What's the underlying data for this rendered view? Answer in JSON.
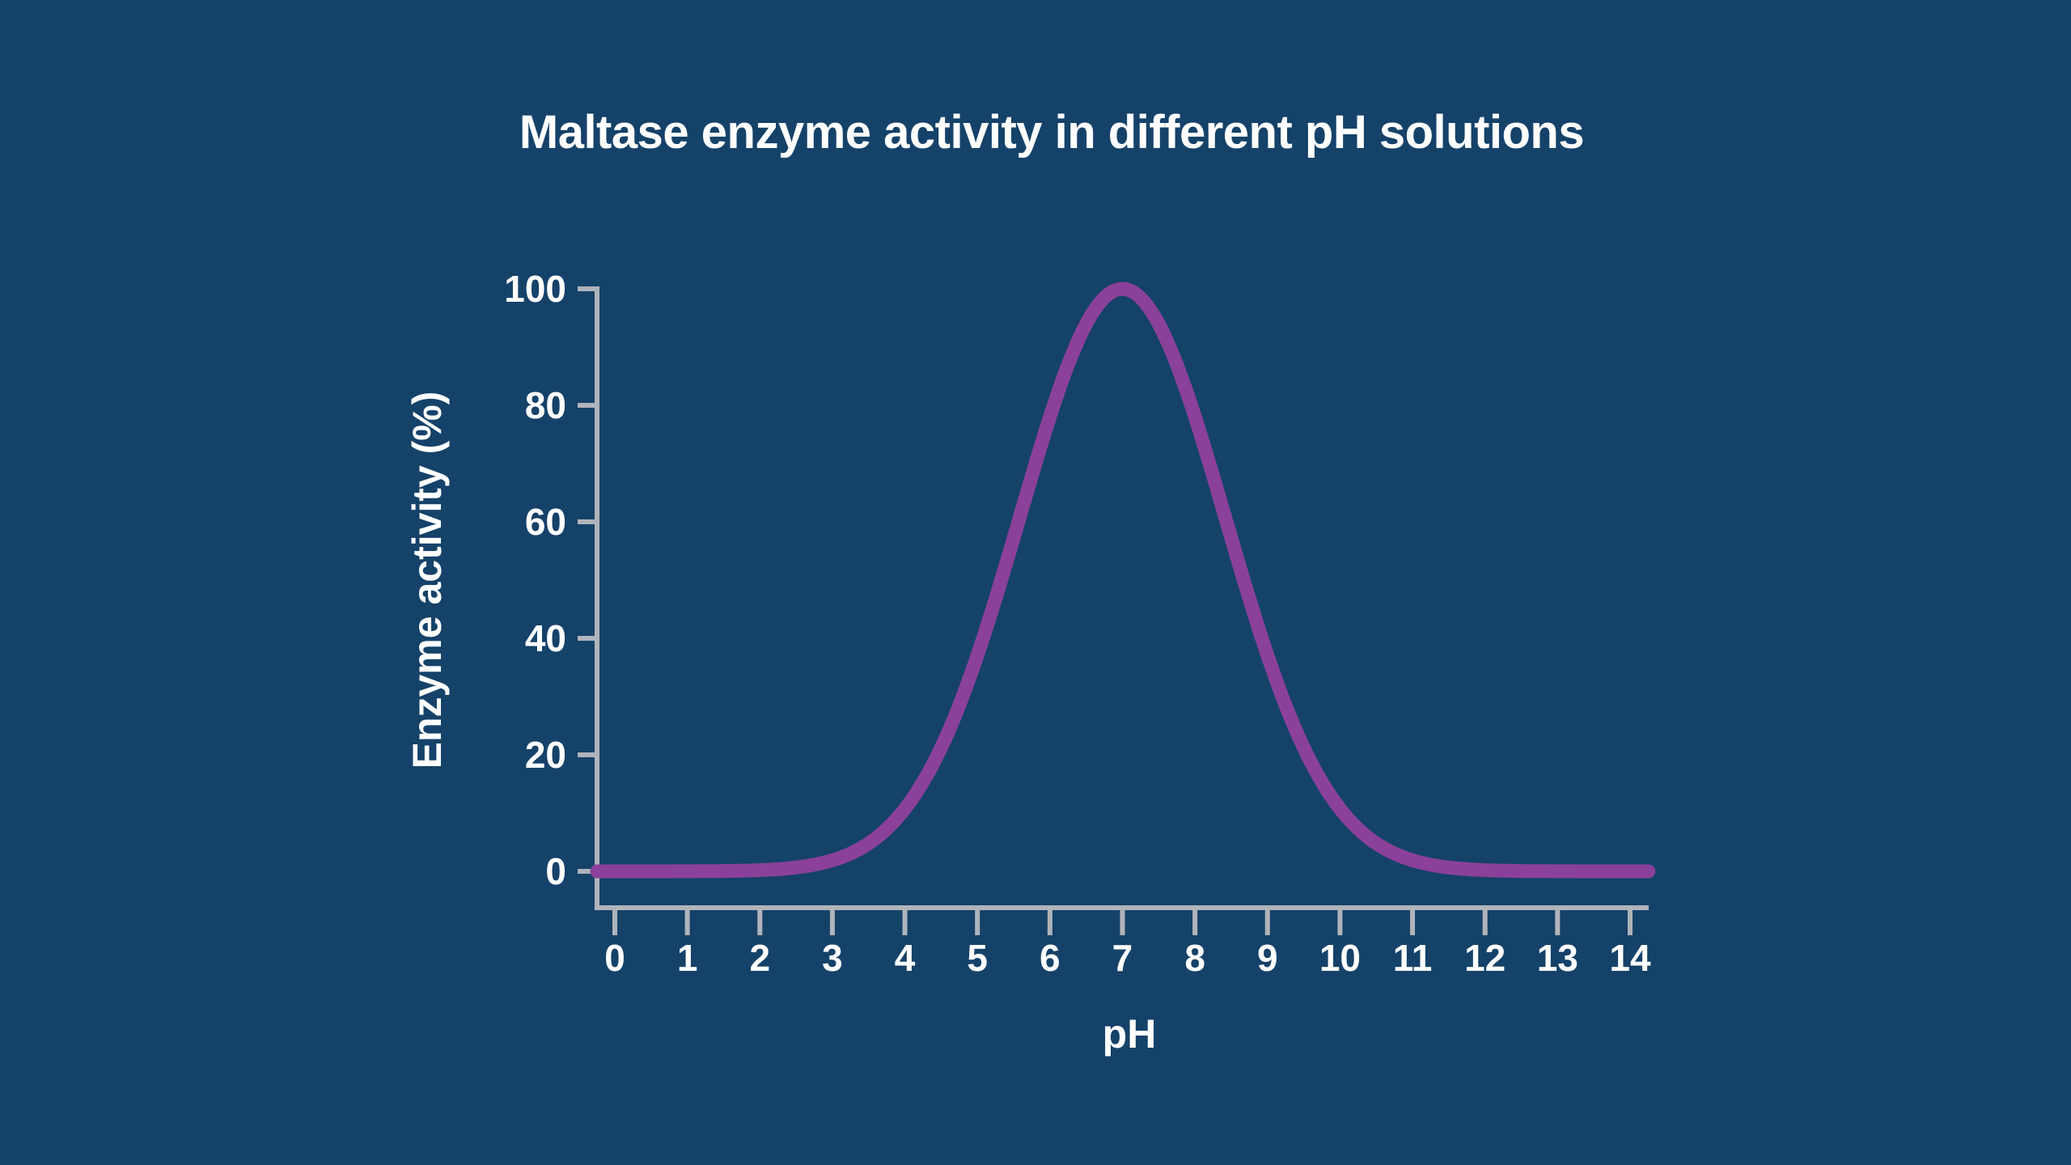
{
  "title": "Maltase enzyme activity in different pH solutions",
  "colors": {
    "background": "#154269",
    "text": "#ffffff",
    "axis": "#b0b4ba",
    "curve": "#8b4199"
  },
  "chart_data": {
    "type": "line",
    "title": "Maltase enzyme activity in different pH solutions",
    "xlabel": "pH",
    "ylabel": "Enzyme activity (%)",
    "xlim": [
      0,
      14
    ],
    "ylim": [
      0,
      100
    ],
    "x_ticks": [
      0,
      1,
      2,
      3,
      4,
      5,
      6,
      7,
      8,
      9,
      10,
      11,
      12,
      13,
      14
    ],
    "y_ticks": [
      0,
      20,
      40,
      60,
      80,
      100
    ],
    "grid": false,
    "legend": false,
    "series": [
      {
        "name": "Maltase enzyme activity",
        "shape": "bell",
        "peak_ph": 7,
        "peak_activity": 100,
        "sigma": 1.42,
        "x": [
          0,
          1,
          2,
          3,
          4,
          5,
          6,
          7,
          8,
          9,
          10,
          11,
          12,
          13,
          14
        ],
        "y": [
          0,
          0,
          0.2,
          1.9,
          10.7,
          37.1,
          78.0,
          100,
          78.0,
          37.1,
          10.7,
          1.9,
          0.2,
          0,
          0
        ]
      }
    ]
  }
}
